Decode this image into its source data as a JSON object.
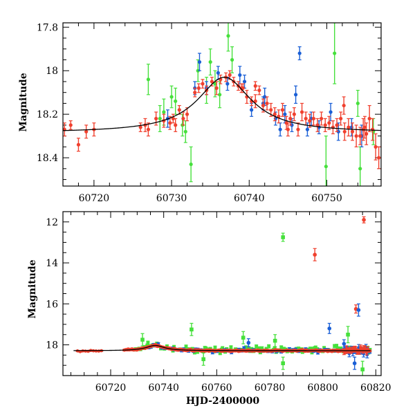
{
  "figure": {
    "xlabel": "HJD-2400000"
  },
  "colors": {
    "red": "#f0402e",
    "blue": "#1a5fd6",
    "green": "#46e03c",
    "model": "#000000"
  },
  "chart_data": [
    {
      "type": "scatter",
      "ylabel": "Magnitude",
      "xlim": [
        60716,
        60757
      ],
      "ylim": [
        18.53,
        17.78
      ],
      "y_inverted": true,
      "xticks_major": [
        60720,
        60730,
        60740,
        60750
      ],
      "xticks_minor_step": 2,
      "yticks_major": [
        17.8,
        18,
        18.2,
        18.4
      ],
      "yticks_minor_step": 0.05,
      "model_curve": {
        "type": "lorentzian",
        "baseline": 18.285,
        "peak": 18.03,
        "center": 60736.8,
        "width": 4.2
      },
      "series": [
        {
          "color": "red",
          "points": [
            [
              60716.2,
              18.27,
              0.03
            ],
            [
              60717.0,
              18.25,
              0.02
            ],
            [
              60718.0,
              18.34,
              0.03
            ],
            [
              60719.0,
              18.28,
              0.03
            ],
            [
              60720.0,
              18.27,
              0.03
            ],
            [
              60726.0,
              18.26,
              0.02
            ],
            [
              60726.6,
              18.25,
              0.03
            ],
            [
              60727.0,
              18.27,
              0.03
            ],
            [
              60728.0,
              18.22,
              0.03
            ],
            [
              60729.0,
              18.23,
              0.03
            ],
            [
              60729.8,
              18.24,
              0.03
            ],
            [
              60730.5,
              18.25,
              0.03
            ],
            [
              60731.0,
              18.18,
              0.02
            ],
            [
              60731.5,
              18.22,
              0.03
            ],
            [
              60732.0,
              18.2,
              0.03
            ],
            [
              60733.0,
              18.1,
              0.02
            ],
            [
              60733.5,
              18.08,
              0.02
            ],
            [
              60734.0,
              18.06,
              0.02
            ],
            [
              60734.5,
              18.09,
              0.02
            ],
            [
              60735.2,
              18.05,
              0.02
            ],
            [
              60735.8,
              18.08,
              0.03
            ],
            [
              60736.3,
              18.04,
              0.02
            ],
            [
              60737.0,
              18.03,
              0.02
            ],
            [
              60737.5,
              18.02,
              0.02
            ],
            [
              60738.0,
              18.05,
              0.02
            ],
            [
              60738.6,
              18.07,
              0.02
            ],
            [
              60739.2,
              18.08,
              0.02
            ],
            [
              60739.7,
              18.12,
              0.03
            ],
            [
              60740.3,
              18.14,
              0.02
            ],
            [
              60740.8,
              18.14,
              0.03
            ],
            [
              60741.3,
              18.09,
              0.02
            ],
            [
              60741.8,
              18.16,
              0.03
            ],
            [
              60742.3,
              18.15,
              0.03
            ],
            [
              60742.8,
              18.18,
              0.03
            ],
            [
              60743.3,
              18.2,
              0.03
            ],
            [
              60743.8,
              18.21,
              0.03
            ],
            [
              60744.3,
              18.18,
              0.03
            ],
            [
              60744.8,
              18.24,
              0.03
            ],
            [
              60745.3,
              18.22,
              0.03
            ],
            [
              60745.8,
              18.2,
              0.03
            ],
            [
              60746.3,
              18.27,
              0.03
            ],
            [
              60746.8,
              18.19,
              0.04
            ],
            [
              60747.3,
              18.22,
              0.03
            ],
            [
              60747.8,
              18.23,
              0.03
            ],
            [
              60748.3,
              18.22,
              0.03
            ],
            [
              60748.8,
              18.25,
              0.03
            ],
            [
              60749.3,
              18.22,
              0.03
            ],
            [
              60749.8,
              18.25,
              0.03
            ],
            [
              60750.3,
              18.24,
              0.03
            ],
            [
              60750.8,
              18.26,
              0.03
            ],
            [
              60751.3,
              18.25,
              0.03
            ],
            [
              60751.8,
              18.22,
              0.03
            ],
            [
              60752.3,
              18.28,
              0.04
            ],
            [
              60752.8,
              18.26,
              0.04
            ],
            [
              60753.3,
              18.28,
              0.04
            ],
            [
              60753.8,
              18.3,
              0.05
            ],
            [
              60754.3,
              18.3,
              0.04
            ],
            [
              60754.7,
              18.27,
              0.05
            ],
            [
              60755.1,
              18.29,
              0.05
            ],
            [
              60755.5,
              18.22,
              0.06
            ],
            [
              60755.9,
              18.27,
              0.05
            ],
            [
              60756.3,
              18.35,
              0.06
            ],
            [
              60756.7,
              18.4,
              0.05
            ],
            [
              60740.8,
              18.07,
              0.02
            ],
            [
              60739.0,
              18.08,
              0.02
            ],
            [
              60752.2,
              18.16,
              0.04
            ],
            [
              60754.9,
              18.26,
              0.05
            ],
            [
              60730.2,
              18.22,
              0.02
            ],
            [
              60745.0,
              18.27,
              0.03
            ]
          ]
        },
        {
          "color": "blue",
          "points": [
            [
              60729.5,
              18.22,
              0.04
            ],
            [
              60733.0,
              18.08,
              0.03
            ],
            [
              60733.6,
              17.96,
              0.04
            ],
            [
              60734.5,
              18.08,
              0.03
            ],
            [
              60736.0,
              18.01,
              0.03
            ],
            [
              60737.2,
              18.06,
              0.03
            ],
            [
              60738.8,
              18.02,
              0.04
            ],
            [
              60740.3,
              18.18,
              0.03
            ],
            [
              60742.0,
              18.12,
              0.04
            ],
            [
              60743.4,
              18.22,
              0.03
            ],
            [
              60744.6,
              18.2,
              0.04
            ],
            [
              60745.5,
              18.25,
              0.03
            ],
            [
              60746.0,
              18.11,
              0.04
            ],
            [
              60746.5,
              17.92,
              0.03
            ],
            [
              60747.5,
              18.27,
              0.03
            ],
            [
              60749.0,
              18.26,
              0.03
            ],
            [
              60750.5,
              18.19,
              0.04
            ],
            [
              60751.5,
              18.28,
              0.04
            ],
            [
              60753.2,
              18.26,
              0.04
            ],
            [
              60754.5,
              18.3,
              0.05
            ],
            [
              60748.0,
              18.22,
              0.03
            ],
            [
              60744.0,
              18.27,
              0.03
            ],
            [
              60741.8,
              18.15,
              0.03
            ],
            [
              60739.4,
              18.05,
              0.03
            ]
          ]
        },
        {
          "color": "green",
          "points": [
            [
              60727.0,
              18.04,
              0.07
            ],
            [
              60728.5,
              18.22,
              0.06
            ],
            [
              60729.0,
              18.19,
              0.06
            ],
            [
              60730.5,
              18.14,
              0.06
            ],
            [
              60731.4,
              18.25,
              0.05
            ],
            [
              60731.8,
              18.28,
              0.05
            ],
            [
              60732.5,
              18.43,
              0.08
            ],
            [
              60733.4,
              18.0,
              0.05
            ],
            [
              60734.5,
              18.09,
              0.06
            ],
            [
              60735.0,
              17.96,
              0.06
            ],
            [
              60735.6,
              18.06,
              0.06
            ],
            [
              60736.2,
              18.11,
              0.06
            ],
            [
              60737.3,
              17.84,
              0.07
            ],
            [
              60737.8,
              17.95,
              0.06
            ],
            [
              60749.9,
              18.44,
              0.14
            ],
            [
              60751.0,
              17.92,
              0.14
            ],
            [
              60754.0,
              18.15,
              0.06
            ],
            [
              60754.3,
              18.45,
              0.1
            ],
            [
              60756.0,
              18.28,
              0.06
            ],
            [
              60730.0,
              18.12,
              0.05
            ]
          ]
        }
      ]
    },
    {
      "type": "scatter",
      "ylabel": "Magnitude",
      "xlim": [
        60702,
        60822
      ],
      "ylim": [
        19.5,
        11.5
      ],
      "y_inverted": true,
      "xticks_major": [
        60720,
        60740,
        60760,
        60780,
        60800,
        60820
      ],
      "xticks_minor_step": 5,
      "yticks_major": [
        12,
        14,
        16,
        18
      ],
      "yticks_minor_step": 0.5,
      "outliers": [
        {
          "color": "green",
          "x": 60785,
          "y": 12.75,
          "err": 0.2
        },
        {
          "color": "red",
          "x": 60797,
          "y": 13.6,
          "err": 0.3
        },
        {
          "color": "red",
          "x": 60815.5,
          "y": 11.9,
          "err": 0.15
        },
        {
          "color": "red",
          "x": 60812.5,
          "y": 16.25,
          "err": 0.2
        },
        {
          "color": "blue",
          "x": 60813.5,
          "y": 16.3,
          "err": 0.3
        },
        {
          "color": "blue",
          "x": 60802.5,
          "y": 17.2,
          "err": 0.25
        },
        {
          "color": "green",
          "x": 60750.5,
          "y": 17.25,
          "err": 0.3
        },
        {
          "color": "green",
          "x": 60770,
          "y": 17.65,
          "err": 0.3
        },
        {
          "color": "green",
          "x": 60782,
          "y": 17.8,
          "err": 0.3
        },
        {
          "color": "green",
          "x": 60809.5,
          "y": 17.5,
          "err": 0.4
        },
        {
          "color": "green",
          "x": 60732,
          "y": 17.75,
          "err": 0.3
        },
        {
          "color": "blue",
          "x": 60772,
          "y": 17.9,
          "err": 0.2
        },
        {
          "color": "blue",
          "x": 60808,
          "y": 17.95,
          "err": 0.2
        },
        {
          "color": "green",
          "x": 60785,
          "y": 18.9,
          "err": 0.3
        },
        {
          "color": "green",
          "x": 60755,
          "y": 18.7,
          "err": 0.3
        },
        {
          "color": "blue",
          "x": 60812,
          "y": 18.9,
          "err": 0.3
        },
        {
          "color": "green",
          "x": 60815,
          "y": 19.2,
          "err": 0.4
        }
      ]
    }
  ]
}
